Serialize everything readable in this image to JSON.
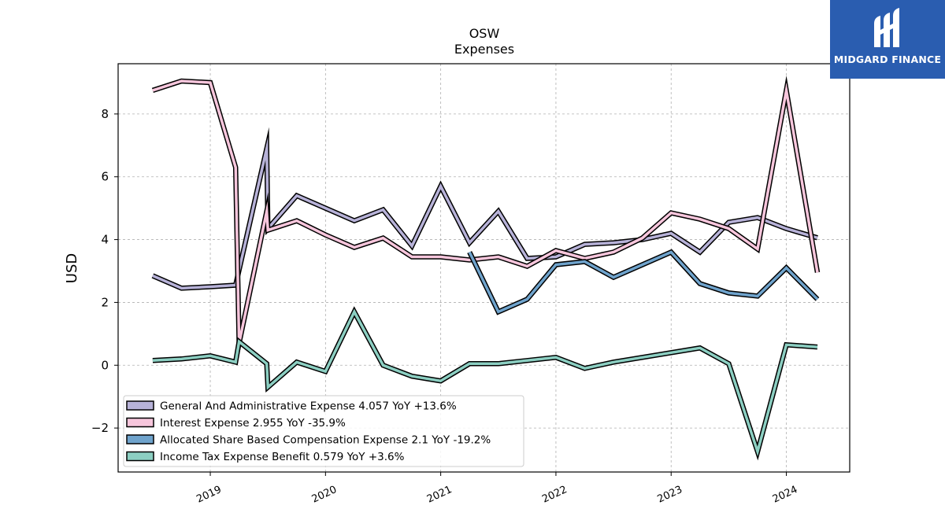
{
  "brand": {
    "name": "MIDGARD FINANCE",
    "accent": "#2a5db0"
  },
  "chart_data": {
    "type": "line",
    "title": "OSW",
    "subtitle": "Expenses",
    "ylabel": "USD",
    "xlabel": "",
    "ylim": [
      -3.4,
      9.6
    ],
    "xlim": [
      2018.2,
      2024.55
    ],
    "yticks": [
      -2,
      0,
      2,
      4,
      6,
      8
    ],
    "xticks": [
      {
        "value": 2019,
        "label": "2019"
      },
      {
        "value": 2020,
        "label": "2020"
      },
      {
        "value": 2021,
        "label": "2021"
      },
      {
        "value": 2022,
        "label": "2022"
      },
      {
        "value": 2023,
        "label": "2023"
      },
      {
        "value": 2024,
        "label": "2024"
      }
    ],
    "grid": true,
    "legend_position": "lower-left",
    "series": [
      {
        "name": "General And Administrative Expense",
        "legend": "General And Administrative Expense  4.057 YoY +13.6%",
        "color": "#b7b2d8",
        "points": [
          [
            2018.5,
            2.85
          ],
          [
            2018.75,
            2.45
          ],
          [
            2019.0,
            2.5
          ],
          [
            2019.22,
            2.55
          ],
          [
            2019.49,
            6.9
          ],
          [
            2019.5,
            4.35
          ],
          [
            2019.75,
            5.4
          ],
          [
            2020.0,
            5.0
          ],
          [
            2020.25,
            4.6
          ],
          [
            2020.5,
            4.95
          ],
          [
            2020.75,
            3.8
          ],
          [
            2021.0,
            5.7
          ],
          [
            2021.25,
            3.9
          ],
          [
            2021.5,
            4.9
          ],
          [
            2021.75,
            3.4
          ],
          [
            2022.0,
            3.45
          ],
          [
            2022.25,
            3.85
          ],
          [
            2022.5,
            3.9
          ],
          [
            2022.75,
            4.0
          ],
          [
            2023.0,
            4.2
          ],
          [
            2023.25,
            3.6
          ],
          [
            2023.5,
            4.55
          ],
          [
            2023.75,
            4.7
          ],
          [
            2024.0,
            4.35
          ],
          [
            2024.27,
            4.057
          ]
        ]
      },
      {
        "name": "Interest Expense",
        "legend": "Interest Expense  2.955 YoY -35.9%",
        "color": "#f7c6dc",
        "points": [
          [
            2018.5,
            8.75
          ],
          [
            2018.75,
            9.05
          ],
          [
            2019.0,
            9.0
          ],
          [
            2019.22,
            6.3
          ],
          [
            2019.25,
            0.7
          ],
          [
            2019.49,
            4.9
          ],
          [
            2019.5,
            4.3
          ],
          [
            2019.75,
            4.6
          ],
          [
            2020.0,
            4.15
          ],
          [
            2020.25,
            3.75
          ],
          [
            2020.5,
            4.05
          ],
          [
            2020.75,
            3.45
          ],
          [
            2021.0,
            3.45
          ],
          [
            2021.25,
            3.35
          ],
          [
            2021.5,
            3.45
          ],
          [
            2021.75,
            3.15
          ],
          [
            2022.0,
            3.65
          ],
          [
            2022.25,
            3.4
          ],
          [
            2022.5,
            3.6
          ],
          [
            2022.75,
            4.05
          ],
          [
            2023.0,
            4.85
          ],
          [
            2023.25,
            4.65
          ],
          [
            2023.5,
            4.35
          ],
          [
            2023.75,
            3.7
          ],
          [
            2024.0,
            8.75
          ],
          [
            2024.27,
            2.955
          ]
        ]
      },
      {
        "name": "Allocated Share Based Compensation Expense",
        "legend": "Allocated Share Based Compensation Expense  2.1 YoY -19.2%",
        "color": "#6fa3cc",
        "points": [
          [
            2021.25,
            3.6
          ],
          [
            2021.5,
            1.7
          ],
          [
            2021.75,
            2.1
          ],
          [
            2022.0,
            3.2
          ],
          [
            2022.25,
            3.3
          ],
          [
            2022.5,
            2.8
          ],
          [
            2022.75,
            3.2
          ],
          [
            2023.0,
            3.6
          ],
          [
            2023.25,
            2.6
          ],
          [
            2023.5,
            2.3
          ],
          [
            2023.75,
            2.2
          ],
          [
            2024.0,
            3.1
          ],
          [
            2024.27,
            2.1
          ]
        ]
      },
      {
        "name": "Income Tax Expense Benefit",
        "legend": "Income Tax Expense Benefit  0.579 YoY +3.6%",
        "color": "#8ccfc2",
        "points": [
          [
            2018.5,
            0.15
          ],
          [
            2018.75,
            0.2
          ],
          [
            2019.0,
            0.3
          ],
          [
            2019.22,
            0.1
          ],
          [
            2019.25,
            0.75
          ],
          [
            2019.49,
            0.05
          ],
          [
            2019.5,
            -0.7
          ],
          [
            2019.75,
            0.1
          ],
          [
            2020.0,
            -0.2
          ],
          [
            2020.25,
            1.7
          ],
          [
            2020.5,
            0.0
          ],
          [
            2020.75,
            -0.35
          ],
          [
            2021.0,
            -0.5
          ],
          [
            2021.25,
            0.05
          ],
          [
            2021.5,
            0.05
          ],
          [
            2021.75,
            0.15
          ],
          [
            2022.0,
            0.25
          ],
          [
            2022.25,
            -0.1
          ],
          [
            2022.5,
            0.1
          ],
          [
            2022.75,
            0.25
          ],
          [
            2023.0,
            0.4
          ],
          [
            2023.25,
            0.55
          ],
          [
            2023.5,
            0.05
          ],
          [
            2023.75,
            -2.75
          ],
          [
            2024.0,
            0.65
          ],
          [
            2024.27,
            0.579
          ]
        ]
      }
    ]
  }
}
